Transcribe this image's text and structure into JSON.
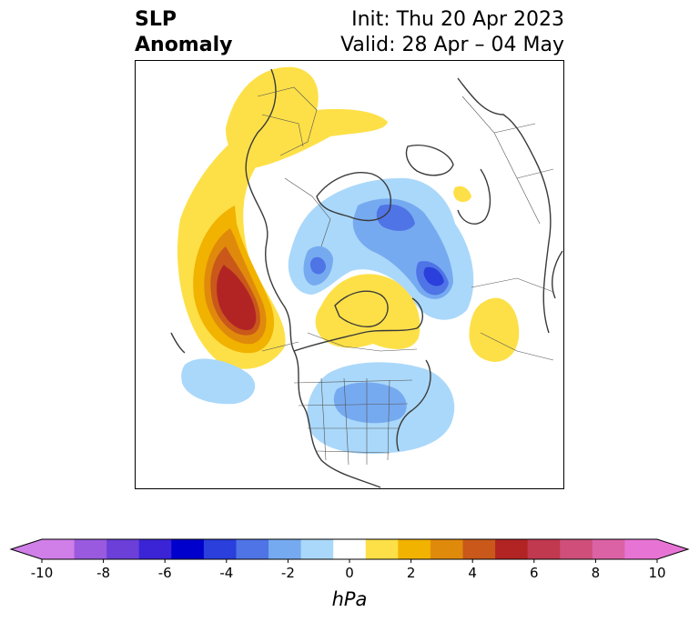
{
  "title": {
    "left_line1": "SLP",
    "left_line2": "Anomaly",
    "init": "Init: Thu 20 Apr 2023",
    "valid": "Valid: 28 Apr – 04 May"
  },
  "colorbar": {
    "unit_label": "hPa",
    "tick_labels": [
      "-10",
      "-8",
      "-6",
      "-4",
      "-2",
      "0",
      "2",
      "4",
      "6",
      "8",
      "10"
    ],
    "levels": [
      -10,
      -9,
      -8,
      -7,
      -6,
      -5,
      -4,
      -3,
      -2,
      -1,
      1,
      2,
      3,
      4,
      5,
      6,
      7,
      8,
      9,
      10
    ],
    "colors": [
      "#d07ee8",
      "#9a5ae0",
      "#6b3fd8",
      "#3a24d6",
      "#0000cc",
      "#2a3fdb",
      "#4f74e6",
      "#76aaf0",
      "#aad8fa",
      "#ffffff",
      "#fde047",
      "#f2b200",
      "#e08a0c",
      "#c9581a",
      "#b22424",
      "#c0394f",
      "#cf4f7a",
      "#dc62a6",
      "#e774d4"
    ],
    "extend_min_color": "#d07ee8",
    "extend_max_color": "#e774d4"
  },
  "map_legend": {
    "projection": "north-polar stereographic",
    "features": [
      "coastlines",
      "country borders",
      "US state borders"
    ]
  }
}
